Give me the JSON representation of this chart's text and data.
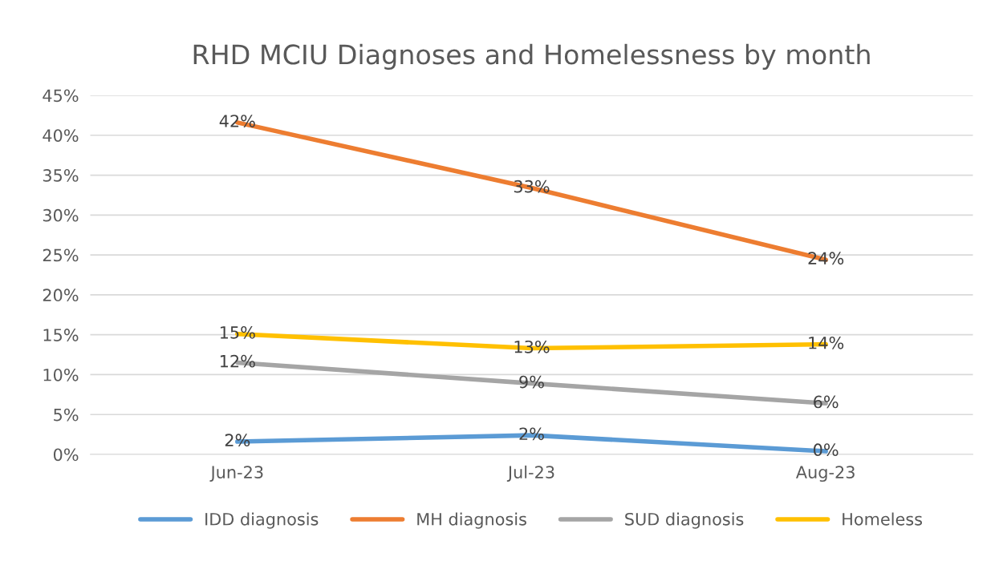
{
  "chart_data": {
    "type": "line",
    "title": "RHD MCIU Diagnoses and Homelessness by month",
    "categories": [
      "Jun-23",
      "Jul-23",
      "Aug-23"
    ],
    "series": [
      {
        "name": "IDD diagnosis",
        "color": "#5b9bd5",
        "values": [
          1.6,
          2.4,
          0.4
        ],
        "value_labels": [
          "2%",
          "2%",
          "0%"
        ]
      },
      {
        "name": "MH diagnosis",
        "color": "#ed7d31",
        "values": [
          41.6,
          33.4,
          24.4
        ],
        "value_labels": [
          "42%",
          "33%",
          "24%"
        ]
      },
      {
        "name": "SUD diagnosis",
        "color": "#a5a5a5",
        "values": [
          11.5,
          8.9,
          6.4
        ],
        "value_labels": [
          "12%",
          "9%",
          "6%"
        ]
      },
      {
        "name": "Homeless",
        "color": "#ffc000",
        "values": [
          15.1,
          13.3,
          13.8
        ],
        "value_labels": [
          "15%",
          "13%",
          "14%"
        ]
      }
    ],
    "ylim": [
      0,
      45
    ],
    "yticks": [
      {
        "value": 0,
        "label": "0%"
      },
      {
        "value": 5,
        "label": "5%"
      },
      {
        "value": 10,
        "label": "10%"
      },
      {
        "value": 15,
        "label": "15%"
      },
      {
        "value": 20,
        "label": "20%"
      },
      {
        "value": 25,
        "label": "25%"
      },
      {
        "value": 30,
        "label": "30%"
      },
      {
        "value": 35,
        "label": "35%"
      },
      {
        "value": 40,
        "label": "40%"
      },
      {
        "value": 45,
        "label": "45%"
      }
    ],
    "grid": "y",
    "legend": "bottom",
    "marker": "none",
    "line_style": "solid"
  }
}
